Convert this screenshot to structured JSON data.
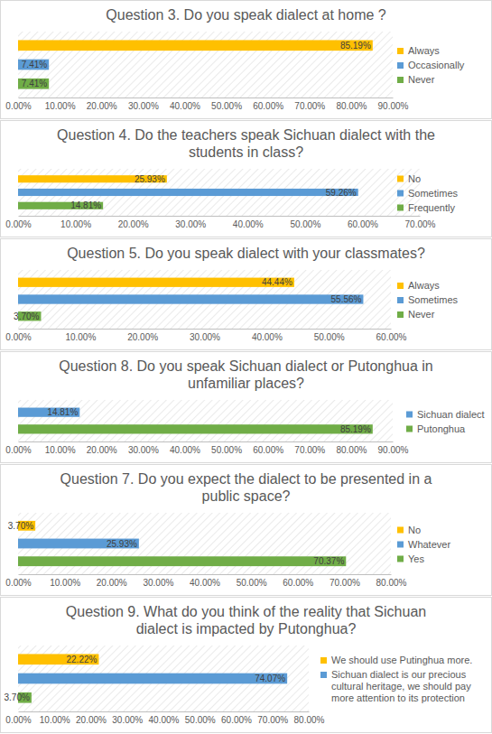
{
  "chart_data": [
    {
      "type": "bar",
      "orientation": "horizontal",
      "title": "Question 3. Do you speak dialect at home ?",
      "categories": [
        "Always",
        "Occasionally",
        "Never"
      ],
      "values": [
        85.19,
        7.41,
        7.41
      ],
      "value_labels": [
        "85.19%",
        "7.41%",
        "7.41%"
      ],
      "colors": [
        "#FFC000",
        "#5B9BD5",
        "#70AD47"
      ],
      "xlim": [
        0,
        90
      ],
      "xticks": [
        {
          "value": 0,
          "label": "0.00%"
        },
        {
          "value": 10,
          "label": "10.00%"
        },
        {
          "value": 20,
          "label": "20.00%"
        },
        {
          "value": 30,
          "label": "30.00%"
        },
        {
          "value": 40,
          "label": "40.00%"
        },
        {
          "value": 50,
          "label": "50.00%"
        },
        {
          "value": 60,
          "label": "60.00%"
        },
        {
          "value": 70,
          "label": "70.00%"
        },
        {
          "value": 80,
          "label": "80.00%"
        },
        {
          "value": 90,
          "label": "90.00%"
        }
      ],
      "legend": "right",
      "data_labels": true
    },
    {
      "type": "bar",
      "orientation": "horizontal",
      "title": "Question 4. Do the teachers speak Sichuan dialect with the students in class?",
      "categories": [
        "No",
        "Sometimes",
        "Frequently"
      ],
      "values": [
        25.93,
        59.26,
        14.81
      ],
      "value_labels": [
        "25.93%",
        "59.26%",
        "14.81%"
      ],
      "colors": [
        "#FFC000",
        "#5B9BD5",
        "#70AD47"
      ],
      "xlim": [
        0,
        70
      ],
      "xticks": [
        {
          "value": 0,
          "label": "0.00%"
        },
        {
          "value": 10,
          "label": "10.00%"
        },
        {
          "value": 20,
          "label": "20.00%"
        },
        {
          "value": 30,
          "label": "30.00%"
        },
        {
          "value": 40,
          "label": "40.00%"
        },
        {
          "value": 50,
          "label": "50.00%"
        },
        {
          "value": 60,
          "label": "60.00%"
        },
        {
          "value": 70,
          "label": "70.00%"
        }
      ],
      "legend": "right",
      "data_labels": true
    },
    {
      "type": "bar",
      "orientation": "horizontal",
      "title": "Question 5. Do you speak dialect with your classmates?",
      "categories": [
        "Always",
        "Sometimes",
        "Never"
      ],
      "values": [
        44.44,
        55.56,
        3.7
      ],
      "value_labels": [
        "44.44%",
        "55.56%",
        "3.70%"
      ],
      "colors": [
        "#FFC000",
        "#5B9BD5",
        "#70AD47"
      ],
      "xlim": [
        0,
        60
      ],
      "xticks": [
        {
          "value": 0,
          "label": "0.00%"
        },
        {
          "value": 10,
          "label": "10.00%"
        },
        {
          "value": 20,
          "label": "20.00%"
        },
        {
          "value": 30,
          "label": "30.00%"
        },
        {
          "value": 40,
          "label": "40.00%"
        },
        {
          "value": 50,
          "label": "50.00%"
        },
        {
          "value": 60,
          "label": "60.00%"
        }
      ],
      "legend": "right",
      "data_labels": true
    },
    {
      "type": "bar",
      "orientation": "horizontal",
      "title": "Question 8. Do you speak Sichuan dialect or Putonghua in unfamiliar places?",
      "categories": [
        "Sichuan dialect",
        "Putonghua"
      ],
      "values": [
        14.81,
        85.19
      ],
      "value_labels": [
        "14.81%",
        "85.19%"
      ],
      "colors": [
        "#5B9BD5",
        "#70AD47"
      ],
      "xlim": [
        0,
        90
      ],
      "xticks": [
        {
          "value": 0,
          "label": "0.00%"
        },
        {
          "value": 10,
          "label": "10.00%"
        },
        {
          "value": 20,
          "label": "20.00%"
        },
        {
          "value": 30,
          "label": "30.00%"
        },
        {
          "value": 40,
          "label": "40.00%"
        },
        {
          "value": 50,
          "label": "50.00%"
        },
        {
          "value": 60,
          "label": "60.00%"
        },
        {
          "value": 70,
          "label": "70.00%"
        },
        {
          "value": 80,
          "label": "80.00%"
        },
        {
          "value": 90,
          "label": "90.00%"
        }
      ],
      "legend": "right",
      "data_labels": true
    },
    {
      "type": "bar",
      "orientation": "horizontal",
      "title": "Question 7. Do you expect the dialect to be presented in a public space?",
      "categories": [
        "No",
        "Whatever",
        "Yes"
      ],
      "values": [
        3.7,
        25.93,
        70.37
      ],
      "value_labels": [
        "3.70%",
        "25.93%",
        "70.37%"
      ],
      "colors": [
        "#FFC000",
        "#5B9BD5",
        "#70AD47"
      ],
      "xlim": [
        0,
        80
      ],
      "xticks": [
        {
          "value": 0,
          "label": "0.00%"
        },
        {
          "value": 10,
          "label": "10.00%"
        },
        {
          "value": 20,
          "label": "20.00%"
        },
        {
          "value": 30,
          "label": "30.00%"
        },
        {
          "value": 40,
          "label": "40.00%"
        },
        {
          "value": 50,
          "label": "50.00%"
        },
        {
          "value": 60,
          "label": "60.00%"
        },
        {
          "value": 70,
          "label": "70.00%"
        },
        {
          "value": 80,
          "label": "80.00%"
        }
      ],
      "legend": "right",
      "data_labels": true
    },
    {
      "type": "bar",
      "orientation": "horizontal",
      "title": "Question 9. What do you think of the reality that Sichuan dialect is impacted by Putonghua?",
      "categories": [
        "We should use Putinghua more.",
        "Sichuan dialect is our precious cultural heritage, we should pay more attention to its protection",
        null
      ],
      "values": [
        22.22,
        74.07,
        3.7
      ],
      "value_labels": [
        "22.22%",
        "74.07%",
        "3.70%"
      ],
      "colors": [
        "#FFC000",
        "#5B9BD5",
        "#70AD47"
      ],
      "xlim": [
        0,
        80
      ],
      "xticks": [
        {
          "value": 0,
          "label": "0.00%"
        },
        {
          "value": 10,
          "label": "10.00%"
        },
        {
          "value": 20,
          "label": "20.00%"
        },
        {
          "value": 30,
          "label": "30.00%"
        },
        {
          "value": 40,
          "label": "40.00%"
        },
        {
          "value": 50,
          "label": "50.00%"
        },
        {
          "value": 60,
          "label": "60.00%"
        },
        {
          "value": 70,
          "label": "70.00%"
        },
        {
          "value": 80,
          "label": "80.00%"
        }
      ],
      "legend": "right",
      "data_labels": true
    }
  ]
}
